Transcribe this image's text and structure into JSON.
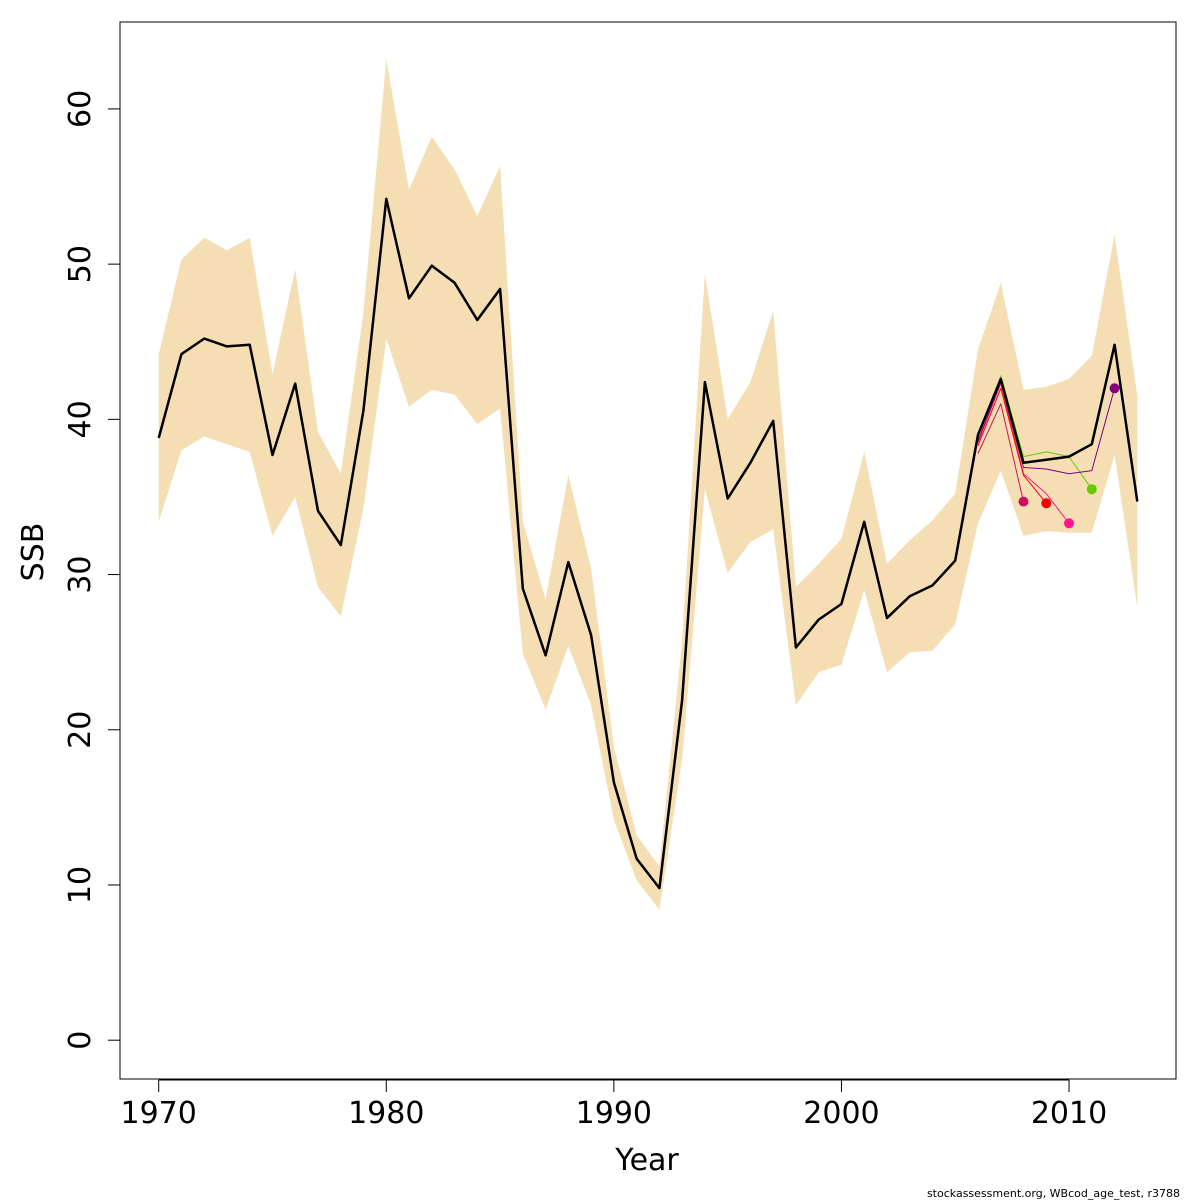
{
  "chart_data": {
    "type": "line",
    "xlabel": "Year",
    "ylabel": "SSB",
    "xlim": [
      1968.3,
      2014.7
    ],
    "ylim": [
      -2.5,
      65.6
    ],
    "x_ticks": [
      1970,
      1980,
      1990,
      2000,
      2010
    ],
    "y_ticks": [
      0,
      10,
      20,
      30,
      40,
      50,
      60
    ],
    "x_tick_labels": [
      "1970",
      "1980",
      "1990",
      "2000",
      "2010"
    ],
    "y_tick_labels": [
      "0",
      "10",
      "20",
      "30",
      "40",
      "50",
      "60"
    ],
    "band": {
      "color": "#f5deb3",
      "years": [
        1970,
        1971,
        1972,
        1973,
        1974,
        1975,
        1976,
        1977,
        1978,
        1979,
        1980,
        1981,
        1982,
        1983,
        1984,
        1985,
        1986,
        1987,
        1988,
        1989,
        1990,
        1991,
        1992,
        1993,
        1994,
        1995,
        1996,
        1997,
        1998,
        1999,
        2000,
        2001,
        2002,
        2003,
        2004,
        2005,
        2006,
        2007,
        2008,
        2009,
        2010,
        2011,
        2012,
        2013
      ],
      "lower": [
        33.4,
        38.0,
        38.9,
        38.4,
        37.9,
        32.5,
        35.0,
        29.2,
        27.3,
        34.3,
        45.2,
        40.8,
        41.9,
        41.6,
        39.7,
        40.7,
        24.9,
        21.3,
        25.4,
        21.6,
        14.2,
        10.3,
        8.4,
        18.1,
        35.5,
        30.1,
        32.1,
        32.9,
        21.6,
        23.7,
        24.2,
        29.0,
        23.7,
        25.0,
        25.1,
        26.8,
        33.3,
        36.7,
        32.5,
        32.8,
        32.7,
        32.7,
        37.7,
        27.9
      ],
      "upper": [
        44.2,
        50.3,
        51.7,
        50.9,
        51.7,
        42.9,
        49.7,
        39.2,
        36.5,
        46.9,
        63.2,
        54.8,
        58.2,
        56.1,
        53.1,
        56.3,
        33.4,
        28.4,
        36.4,
        30.4,
        18.9,
        13.2,
        11.2,
        25.7,
        49.4,
        40.0,
        42.4,
        47.0,
        29.2,
        30.7,
        32.3,
        37.9,
        30.7,
        32.2,
        33.5,
        35.2,
        44.5,
        48.8,
        41.9,
        42.1,
        42.6,
        44.1,
        51.9,
        41.5
      ]
    },
    "series": [
      {
        "color": "#000000",
        "x": [
          1970,
          1971,
          1972,
          1973,
          1974,
          1975,
          1976,
          1977,
          1978,
          1979,
          1980,
          1981,
          1982,
          1983,
          1984,
          1985,
          1986,
          1987,
          1988,
          1989,
          1990,
          1991,
          1992,
          1993,
          1994,
          1995,
          1996,
          1997,
          1998,
          1999,
          2000,
          2001,
          2002,
          2003,
          2004,
          2005,
          2006,
          2007,
          2008,
          2009,
          2010,
          2011,
          2012,
          2013
        ],
        "values": [
          38.8,
          44.2,
          45.2,
          44.7,
          44.8,
          37.7,
          42.3,
          34.1,
          31.9,
          40.6,
          54.2,
          47.8,
          49.9,
          48.8,
          46.4,
          48.4,
          29.1,
          24.8,
          30.8,
          26.1,
          16.6,
          11.7,
          9.8,
          21.9,
          42.4,
          34.9,
          37.2,
          39.9,
          25.3,
          27.1,
          28.1,
          33.4,
          27.2,
          28.6,
          29.3,
          30.9,
          39.0,
          42.6,
          37.2,
          37.4,
          37.6,
          38.4,
          44.8,
          34.7
        ],
        "line_width": 2.5,
        "end_point": false
      },
      {
        "color": "#66cc00",
        "x": [
          2006,
          2007,
          2008,
          2009,
          2010,
          2011
        ],
        "values": [
          38.9,
          42.8,
          37.6,
          37.9,
          37.6,
          35.5
        ],
        "line_width": 1,
        "end_point": true
      },
      {
        "color": "#ff1493",
        "x": [
          2006,
          2007,
          2008,
          2009,
          2010
        ],
        "values": [
          38.5,
          42.3,
          36.5,
          35.2,
          33.3
        ],
        "line_width": 1,
        "end_point": true
      },
      {
        "color": "#ff0000",
        "x": [
          2006,
          2007,
          2008,
          2009
        ],
        "values": [
          38.3,
          42.0,
          36.4,
          34.6
        ],
        "line_width": 1,
        "end_point": true
      },
      {
        "color": "#cc1060",
        "x": [
          2006,
          2007,
          2008
        ],
        "values": [
          37.8,
          41.0,
          34.7
        ],
        "line_width": 1,
        "end_point": true
      },
      {
        "color": "#800080",
        "x": [
          2006,
          2007,
          2008,
          2009,
          2010,
          2011,
          2012
        ],
        "values": [
          38.6,
          42.4,
          36.9,
          36.8,
          36.5,
          36.7,
          42.0
        ],
        "line_width": 1,
        "end_point": true
      }
    ],
    "footnote": "stockassessment.org, WBcod_age_test, r3788"
  }
}
